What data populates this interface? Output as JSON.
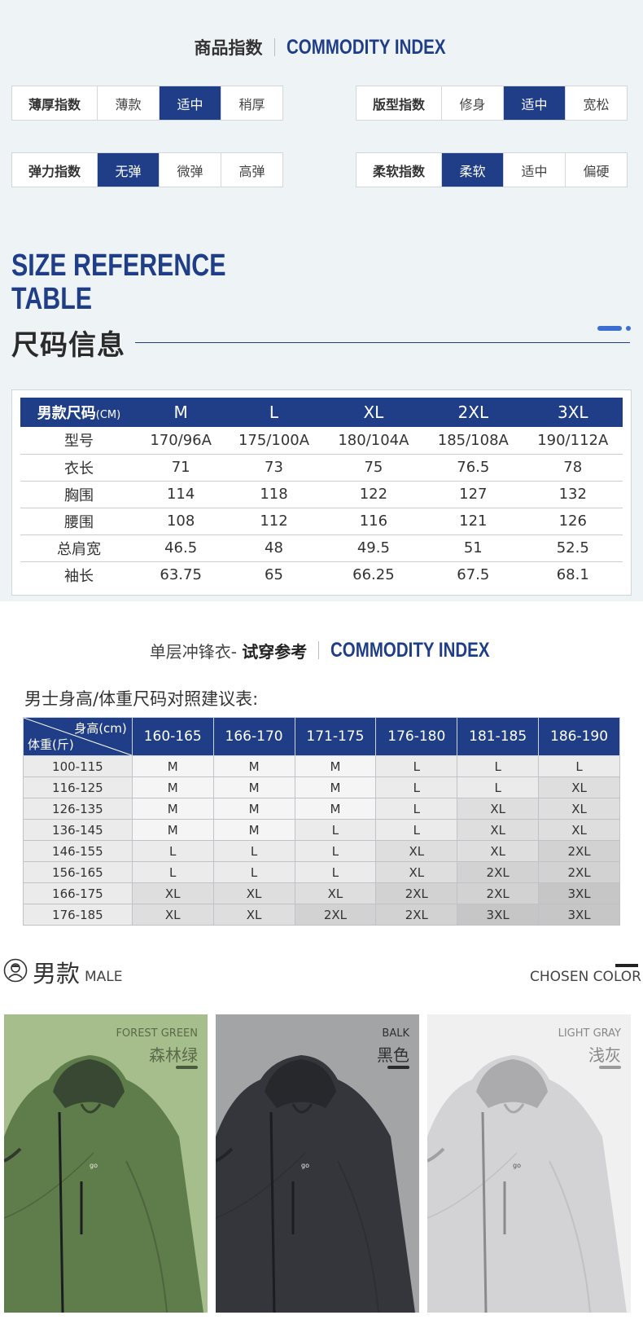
{
  "commodity_index": {
    "title_cn": "商品指数",
    "title_en": "COMMODITY INDEX",
    "rows": [
      {
        "label": "薄厚指数",
        "options": [
          "薄款",
          "适中",
          "稍厚"
        ],
        "selected": 1
      },
      {
        "label": "版型指数",
        "options": [
          "修身",
          "适中",
          "宽松"
        ],
        "selected": 1
      },
      {
        "label": "弹力指数",
        "options": [
          "无弹",
          "微弹",
          "高弹"
        ],
        "selected": 0
      },
      {
        "label": "柔软指数",
        "options": [
          "柔软",
          "适中",
          "偏硬"
        ],
        "selected": 0
      }
    ]
  },
  "size_reference": {
    "title_en_1": "SIZE REFERENCE",
    "title_en_2": "TABLE",
    "title_cn": "尺码信息",
    "table": {
      "corner_main": "男款尺码",
      "corner_unit": "(CM)",
      "sizes": [
        "M",
        "L",
        "XL",
        "2XL",
        "3XL"
      ],
      "rows": [
        {
          "label": "型号",
          "values": [
            "170/96A",
            "175/100A",
            "180/104A",
            "185/108A",
            "190/112A"
          ]
        },
        {
          "label": "衣长",
          "values": [
            "71",
            "73",
            "75",
            "76.5",
            "78"
          ]
        },
        {
          "label": "胸围",
          "values": [
            "114",
            "118",
            "122",
            "127",
            "132"
          ]
        },
        {
          "label": "腰围",
          "values": [
            "108",
            "112",
            "116",
            "121",
            "126"
          ]
        },
        {
          "label": "总肩宽",
          "values": [
            "46.5",
            "48",
            "49.5",
            "51",
            "52.5"
          ]
        },
        {
          "label": "袖长",
          "values": [
            "63.75",
            "65",
            "66.25",
            "67.5",
            "68.1"
          ]
        }
      ]
    }
  },
  "fitting": {
    "title_cn_prefix": "单层冲锋衣- ",
    "title_cn_bold": "试穿参考",
    "title_en": "COMMODITY INDEX",
    "subtitle": "男士身高/体重尺码对照建议表:",
    "corner_top": "身高(cm)",
    "corner_bottom": "体重(斤)",
    "heights": [
      "160-165",
      "166-170",
      "171-175",
      "176-180",
      "181-185",
      "186-190"
    ],
    "rows": [
      {
        "weight": "100-115",
        "sizes": [
          "M",
          "M",
          "M",
          "L",
          "L",
          "L"
        ]
      },
      {
        "weight": "116-125",
        "sizes": [
          "M",
          "M",
          "M",
          "L",
          "L",
          "XL"
        ]
      },
      {
        "weight": "126-135",
        "sizes": [
          "M",
          "M",
          "M",
          "L",
          "XL",
          "XL"
        ]
      },
      {
        "weight": "136-145",
        "sizes": [
          "M",
          "M",
          "L",
          "L",
          "XL",
          "XL"
        ]
      },
      {
        "weight": "146-155",
        "sizes": [
          "L",
          "L",
          "L",
          "XL",
          "XL",
          "2XL"
        ]
      },
      {
        "weight": "156-165",
        "sizes": [
          "L",
          "L",
          "L",
          "XL",
          "2XL",
          "2XL"
        ]
      },
      {
        "weight": "166-175",
        "sizes": [
          "XL",
          "XL",
          "XL",
          "2XL",
          "2XL",
          "3XL"
        ]
      },
      {
        "weight": "176-185",
        "sizes": [
          "XL",
          "XL",
          "2XL",
          "2XL",
          "3XL",
          "3XL"
        ]
      }
    ]
  },
  "male": {
    "title_cn": "男款",
    "title_en": "MALE",
    "chosen_color": "CHOSEN COLOR",
    "colors": [
      {
        "en": "FOREST GREEN",
        "cn": "森林绿",
        "bg": "#a6bd8c",
        "jacket": "#5e7d4a",
        "text": "#5a6b4a",
        "bar": "#4a5a3c"
      },
      {
        "en": "BALK",
        "cn": "黑色",
        "bg": "#a3a4a6",
        "jacket": "#34363b",
        "text": "#2f3033",
        "bar": "#2a2b2e"
      },
      {
        "en": "LIGHT GRAY",
        "cn": "浅灰",
        "bg": "#f0f0f0",
        "jacket": "#d3d3d5",
        "text": "#888888",
        "bar": "#9a9a9a"
      }
    ]
  },
  "colors": {
    "brand_blue": "#1f3e87",
    "accent_blue": "#3d6fd0",
    "top_background": "#eef3f6"
  }
}
